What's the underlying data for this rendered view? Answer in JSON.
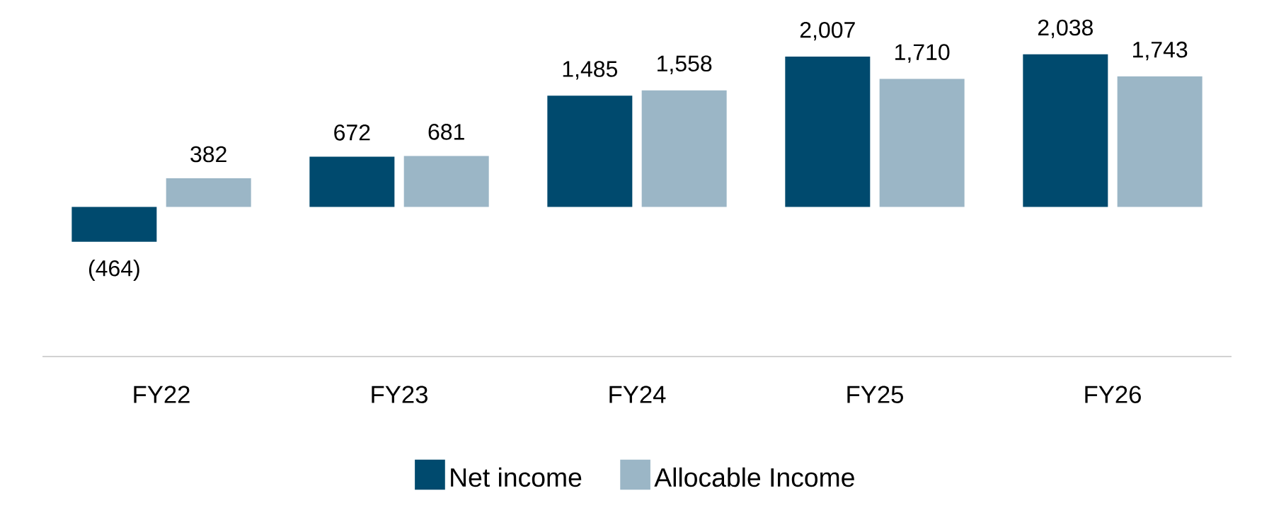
{
  "chart_data": {
    "type": "bar",
    "categories": [
      "FY22",
      "FY23",
      "FY24",
      "FY25",
      "FY26"
    ],
    "series": [
      {
        "name": "Net income",
        "color": "#004a6e",
        "values": [
          -464,
          672,
          1485,
          2007,
          2038
        ],
        "value_labels": [
          "(464)",
          "672",
          "1,485",
          "2,007",
          "2,038"
        ]
      },
      {
        "name": "Allocable Income",
        "color": "#9bb6c6",
        "values": [
          382,
          681,
          1558,
          1710,
          1743
        ],
        "value_labels": [
          "382",
          "681",
          "1,558",
          "1,710",
          "1,743"
        ]
      }
    ],
    "legend": "bottom"
  }
}
